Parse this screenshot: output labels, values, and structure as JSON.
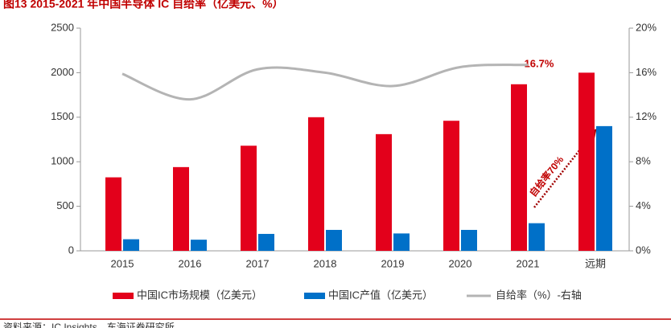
{
  "chart_data": {
    "type": "bar_line",
    "title": "图13  2015-2021 年中国半导体 IC 自给率（亿美元、%）",
    "source": "资料来源：IC Insights，东海证券研究所",
    "categories": [
      "2015",
      "2016",
      "2017",
      "2018",
      "2019",
      "2020",
      "2021",
      "远期"
    ],
    "series": [
      {
        "name": "中国IC市场规模（亿美元）",
        "color": "#e3001b",
        "values": [
          825,
          940,
          1180,
          1500,
          1310,
          1460,
          1870,
          2000
        ]
      },
      {
        "name": "中国IC产值（亿美元）",
        "color": "#0070c8",
        "values": [
          130,
          125,
          190,
          235,
          195,
          235,
          310,
          1400
        ]
      },
      {
        "name": "自给率（%）-右轴",
        "color": "#b4b4b4",
        "axis": "y2",
        "values": [
          15.9,
          13.6,
          16.3,
          16.0,
          14.8,
          16.5,
          16.7,
          null
        ]
      }
    ],
    "ylim": [
      0,
      2500
    ],
    "yticks": [
      0,
      500,
      1000,
      1500,
      2000,
      2500
    ],
    "y2lim": [
      0,
      20
    ],
    "y2ticks": [
      {
        "value": 0,
        "label": "0%"
      },
      {
        "value": 4,
        "label": "4%"
      },
      {
        "value": 8,
        "label": "8%"
      },
      {
        "value": 12,
        "label": "12%"
      },
      {
        "value": 16,
        "label": "16%"
      },
      {
        "value": 20,
        "label": "20%"
      }
    ],
    "annotations": [
      "16.7%",
      "自给率70%"
    ]
  }
}
